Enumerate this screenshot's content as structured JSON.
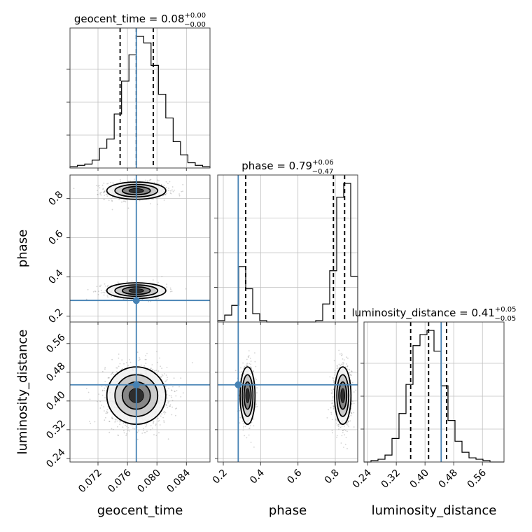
{
  "chart_data": {
    "type": "corner",
    "parameters": [
      "geocent_time",
      "phase",
      "luminosity_distance"
    ],
    "truths": {
      "geocent_time": 0.0772,
      "phase": 0.28,
      "luminosity_distance": 0.445
    },
    "colors": {
      "truth": "#4682b4",
      "hist": "#000000",
      "grid": "#c0c0c0",
      "scatter": "#808080"
    },
    "panels": [
      {
        "id": "hist-geocent_time",
        "kind": "hist",
        "param": "geocent_time",
        "title": {
          "prefix": "geocent_time = 0.08",
          "sup": "+0.00",
          "sub": "−0.00"
        },
        "xlim": [
          0.0682,
          0.0872
        ],
        "bins": [
          0.0682,
          0.0692,
          0.0702,
          0.0712,
          0.0722,
          0.0732,
          0.0742,
          0.0752,
          0.0762,
          0.0772,
          0.0782,
          0.0792,
          0.0802,
          0.0812,
          0.0822,
          0.0832,
          0.0842,
          0.0852,
          0.0862,
          0.0872
        ],
        "counts": [
          1,
          2,
          3,
          6,
          15,
          22,
          41,
          66,
          86,
          100,
          95,
          78,
          56,
          38,
          20,
          10,
          4,
          2,
          1
        ],
        "quantiles": [
          0.075,
          0.0772,
          0.0795
        ]
      },
      {
        "id": "hist-phase",
        "kind": "hist",
        "param": "phase",
        "title": {
          "prefix": "phase = 0.79",
          "sup": "+0.06",
          "sub": "−0.47"
        },
        "xlim": [
          0.17,
          0.92
        ],
        "bins": [
          0.17,
          0.2075,
          0.245,
          0.2825,
          0.32,
          0.3575,
          0.395,
          0.4325,
          0.47,
          0.5075,
          0.545,
          0.5825,
          0.62,
          0.6575,
          0.695,
          0.7325,
          0.77,
          0.8075,
          0.845,
          0.8825,
          0.92
        ],
        "counts": [
          1,
          5,
          12,
          40,
          24,
          6,
          1,
          0,
          0,
          0,
          0,
          0,
          0,
          0,
          1,
          13,
          37,
          90,
          100,
          33
        ],
        "quantiles": [
          0.32,
          0.79,
          0.85
        ]
      },
      {
        "id": "hist-luminosity_distance",
        "kind": "hist",
        "param": "luminosity_distance",
        "title": {
          "prefix": "luminosity_distance = 0.41",
          "sup": "+0.05",
          "sub": "−0.05"
        },
        "xlim": [
          0.23,
          0.62
        ],
        "bins": [
          0.23,
          0.2495,
          0.269,
          0.2885,
          0.308,
          0.3275,
          0.347,
          0.3665,
          0.386,
          0.4055,
          0.425,
          0.4445,
          0.464,
          0.4835,
          0.503,
          0.5225,
          0.542,
          0.5615,
          0.581,
          0.6005,
          0.62
        ],
        "counts": [
          0,
          1,
          2,
          5,
          17,
          35,
          56,
          84,
          92,
          95,
          80,
          55,
          30,
          15,
          7,
          3,
          2,
          1,
          0,
          0
        ],
        "quantiles": [
          0.36,
          0.41,
          0.46
        ]
      },
      {
        "id": "scatter-phase-vs-geocent_time",
        "kind": "2d",
        "xparam": "geocent_time",
        "yparam": "phase",
        "xlim": [
          0.0682,
          0.0872
        ],
        "ylim": [
          0.17,
          0.92
        ],
        "modes": [
          {
            "cx": 0.0772,
            "cy": 0.84,
            "sx": 0.002,
            "sy": 0.022,
            "w": 0.62
          },
          {
            "cx": 0.0772,
            "cy": 0.33,
            "sx": 0.002,
            "sy": 0.02,
            "w": 0.38
          }
        ]
      },
      {
        "id": "scatter-luminosity_distance-vs-geocent_time",
        "kind": "2d",
        "xparam": "geocent_time",
        "yparam": "luminosity_distance",
        "xlim": [
          0.0682,
          0.0872
        ],
        "ylim": [
          0.23,
          0.62
        ],
        "modes": [
          {
            "cx": 0.0772,
            "cy": 0.415,
            "sx": 0.002,
            "sy": 0.04,
            "w": 1.0
          }
        ]
      },
      {
        "id": "scatter-luminosity_distance-vs-phase",
        "kind": "2d",
        "xparam": "phase",
        "yparam": "luminosity_distance",
        "xlim": [
          0.17,
          0.92
        ],
        "ylim": [
          0.23,
          0.62
        ],
        "modes": [
          {
            "cx": 0.33,
            "cy": 0.415,
            "sx": 0.02,
            "sy": 0.04,
            "w": 0.38
          },
          {
            "cx": 0.84,
            "cy": 0.415,
            "sx": 0.022,
            "sy": 0.04,
            "w": 0.62
          }
        ]
      }
    ],
    "ticks": {
      "geocent_time": [
        "0.072",
        "0.076",
        "0.080",
        "0.084"
      ],
      "phase": [
        "0.2",
        "0.4",
        "0.6",
        "0.8"
      ],
      "luminosity_distance": [
        "0.24",
        "0.32",
        "0.40",
        "0.48",
        "0.56"
      ]
    },
    "axis_labels": {
      "geocent_time": "geocent_time",
      "phase": "phase",
      "luminosity_distance": "luminosity_distance"
    }
  }
}
